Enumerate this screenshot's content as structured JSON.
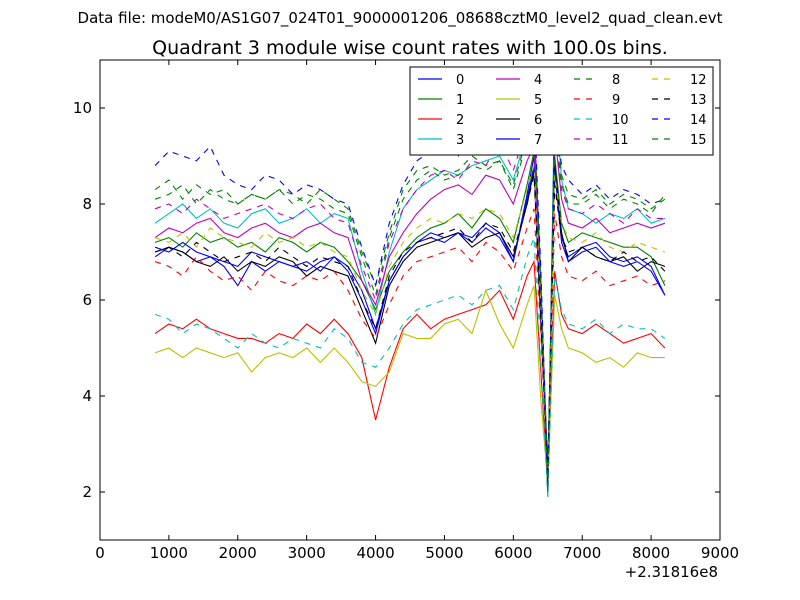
{
  "figure": {
    "suptitle": "Data file: modeM0/AS1G07_024T01_9000001206_08688cztM0_level2_quad_clean.evt"
  },
  "chart_data": {
    "type": "line",
    "title": "Quadrant 3 module wise count rates with 100.0s bins.",
    "xlabel": "",
    "ylabel": "",
    "x_offset_label": "+2.31816e8",
    "xlim": [
      0,
      9000
    ],
    "ylim": [
      1,
      11
    ],
    "xticks": [
      0,
      1000,
      2000,
      3000,
      4000,
      5000,
      6000,
      7000,
      8000,
      9000
    ],
    "yticks": [
      2,
      4,
      6,
      8,
      10
    ],
    "grid": false,
    "legend_position": "top-right",
    "legend_columns": 4,
    "x": [
      800,
      1000,
      1200,
      1400,
      1600,
      1800,
      2000,
      2200,
      2400,
      2600,
      2800,
      3000,
      3200,
      3400,
      3600,
      3800,
      4000,
      4200,
      4400,
      4600,
      4800,
      5000,
      5200,
      5400,
      5600,
      5800,
      6000,
      6200,
      6300,
      6400,
      6500,
      6600,
      6700,
      6800,
      7000,
      7200,
      7400,
      7600,
      7800,
      8000,
      8200
    ],
    "series": [
      {
        "name": "0",
        "color": "#0000ff",
        "dash": "solid",
        "values": [
          6.9,
          7.1,
          7.0,
          6.8,
          6.9,
          6.7,
          6.3,
          6.8,
          6.6,
          6.8,
          6.7,
          6.6,
          6.8,
          6.9,
          6.7,
          6.2,
          5.4,
          6.4,
          6.9,
          7.2,
          7.4,
          7.3,
          7.4,
          7.3,
          7.6,
          7.4,
          6.8,
          8.2,
          9.0,
          5.8,
          2.3,
          8.9,
          7.3,
          6.9,
          7.1,
          7.2,
          6.9,
          6.8,
          6.9,
          6.7,
          6.1
        ]
      },
      {
        "name": "1",
        "color": "#008000",
        "dash": "solid",
        "values": [
          7.2,
          7.3,
          7.1,
          7.4,
          7.2,
          7.3,
          7.1,
          7.2,
          7.0,
          7.3,
          7.2,
          7.0,
          7.2,
          7.1,
          6.8,
          6.4,
          5.8,
          6.6,
          7.0,
          7.3,
          7.5,
          7.6,
          7.8,
          7.5,
          7.9,
          7.7,
          7.2,
          8.4,
          9.1,
          6.2,
          2.5,
          9.0,
          7.6,
          7.2,
          7.4,
          7.3,
          7.2,
          7.1,
          7.1,
          6.9,
          6.3
        ]
      },
      {
        "name": "2",
        "color": "#ff0000",
        "dash": "solid",
        "values": [
          5.3,
          5.5,
          5.4,
          5.6,
          5.4,
          5.3,
          5.2,
          5.2,
          5.1,
          5.3,
          5.2,
          5.5,
          5.3,
          5.6,
          5.3,
          4.8,
          3.5,
          4.6,
          5.4,
          5.7,
          5.4,
          5.6,
          5.7,
          5.8,
          5.9,
          6.2,
          5.6,
          6.5,
          6.8,
          4.5,
          2.1,
          6.6,
          5.7,
          5.4,
          5.3,
          5.5,
          5.3,
          5.1,
          5.2,
          5.3,
          5.0
        ]
      },
      {
        "name": "3",
        "color": "#00bfbf",
        "dash": "solid",
        "values": [
          7.6,
          7.8,
          8.0,
          7.7,
          7.9,
          7.6,
          7.5,
          7.8,
          7.9,
          7.6,
          7.7,
          7.9,
          7.6,
          7.8,
          7.7,
          6.6,
          5.7,
          7.0,
          7.9,
          8.3,
          8.5,
          8.7,
          8.6,
          8.8,
          8.9,
          9.0,
          8.5,
          9.5,
          9.8,
          6.5,
          1.9,
          10.4,
          8.5,
          7.9,
          7.8,
          7.6,
          7.8,
          7.7,
          7.9,
          7.6,
          7.7
        ]
      },
      {
        "name": "4",
        "color": "#bf00bf",
        "dash": "solid",
        "values": [
          7.3,
          7.5,
          7.4,
          7.6,
          7.7,
          7.4,
          7.3,
          7.5,
          7.6,
          7.4,
          7.3,
          7.5,
          7.6,
          7.4,
          7.3,
          6.4,
          5.9,
          6.9,
          7.4,
          7.8,
          8.1,
          8.3,
          8.4,
          8.2,
          8.6,
          8.5,
          8.0,
          8.9,
          9.2,
          6.0,
          2.2,
          9.5,
          8.1,
          7.6,
          7.5,
          7.7,
          7.4,
          7.5,
          7.6,
          7.5,
          7.6
        ]
      },
      {
        "name": "5",
        "color": "#bfbf00",
        "dash": "solid",
        "values": [
          4.9,
          5.0,
          4.8,
          5.0,
          4.9,
          4.8,
          4.9,
          4.5,
          4.8,
          4.9,
          4.8,
          5.0,
          4.7,
          5.0,
          4.7,
          4.3,
          4.2,
          4.5,
          5.3,
          5.2,
          5.2,
          5.5,
          5.6,
          5.3,
          6.2,
          5.5,
          5.0,
          5.9,
          6.3,
          3.9,
          2.2,
          6.1,
          5.4,
          5.0,
          4.9,
          4.7,
          4.8,
          4.6,
          4.9,
          4.8,
          4.8
        ]
      },
      {
        "name": "6",
        "color": "#000000",
        "dash": "solid",
        "values": [
          7.0,
          7.1,
          7.0,
          6.8,
          6.7,
          6.9,
          6.6,
          6.8,
          6.7,
          6.9,
          6.8,
          6.5,
          6.7,
          6.6,
          6.5,
          5.8,
          5.1,
          6.3,
          6.8,
          7.1,
          7.2,
          7.3,
          7.4,
          7.1,
          7.3,
          7.4,
          6.9,
          8.0,
          8.7,
          5.5,
          2.4,
          8.8,
          7.4,
          6.8,
          7.1,
          6.9,
          6.8,
          6.9,
          6.6,
          6.8,
          6.7
        ]
      },
      {
        "name": "7",
        "color": "#0000ff",
        "dash": "solid",
        "values": [
          7.1,
          7.0,
          7.2,
          7.0,
          6.9,
          6.8,
          6.7,
          7.0,
          6.9,
          6.8,
          6.7,
          6.8,
          6.6,
          6.9,
          6.6,
          6.0,
          5.3,
          6.4,
          6.9,
          7.2,
          7.3,
          7.2,
          7.4,
          7.2,
          7.5,
          7.3,
          6.8,
          8.1,
          8.8,
          5.7,
          2.3,
          8.7,
          7.2,
          6.8,
          7.0,
          7.1,
          6.8,
          6.7,
          6.8,
          6.6,
          6.1
        ]
      },
      {
        "name": "8",
        "color": "#008000",
        "dash": "dashed",
        "values": [
          8.3,
          8.5,
          8.1,
          8.4,
          8.2,
          8.3,
          8.0,
          8.2,
          8.1,
          8.3,
          8.2,
          8.0,
          8.3,
          8.1,
          7.9,
          7.0,
          6.3,
          7.4,
          8.3,
          8.7,
          8.8,
          8.6,
          8.7,
          9.0,
          8.8,
          8.9,
          8.4,
          9.4,
          9.7,
          6.4,
          2.0,
          9.9,
          8.6,
          8.2,
          8.1,
          8.3,
          8.0,
          8.2,
          8.1,
          7.9,
          8.1
        ]
      },
      {
        "name": "9",
        "color": "#ff0000",
        "dash": "dashed",
        "values": [
          6.8,
          6.7,
          6.5,
          6.9,
          6.6,
          6.4,
          6.5,
          6.2,
          6.6,
          6.4,
          6.3,
          6.5,
          6.4,
          6.6,
          6.2,
          5.6,
          5.2,
          5.9,
          6.5,
          6.8,
          6.9,
          7.0,
          7.1,
          6.8,
          7.2,
          7.0,
          6.6,
          7.5,
          7.9,
          5.3,
          2.2,
          7.8,
          6.9,
          6.5,
          6.4,
          6.6,
          6.3,
          6.4,
          6.5,
          6.3,
          6.4
        ]
      },
      {
        "name": "10",
        "color": "#00bfbf",
        "dash": "dashed",
        "values": [
          5.7,
          5.6,
          5.3,
          5.5,
          5.4,
          5.2,
          5.0,
          5.3,
          5.1,
          5.0,
          5.2,
          5.1,
          5.0,
          5.4,
          5.2,
          4.7,
          4.6,
          5.0,
          5.5,
          5.8,
          5.9,
          6.0,
          6.1,
          5.9,
          6.2,
          6.3,
          5.8,
          6.9,
          7.3,
          4.6,
          1.9,
          6.5,
          5.8,
          5.5,
          5.4,
          5.6,
          5.3,
          5.5,
          5.4,
          5.4,
          5.2
        ]
      },
      {
        "name": "11",
        "color": "#bf00bf",
        "dash": "dashed",
        "values": [
          7.9,
          8.0,
          7.8,
          8.1,
          7.9,
          7.7,
          7.8,
          7.9,
          8.0,
          7.8,
          7.7,
          7.9,
          8.0,
          7.7,
          7.6,
          6.7,
          6.0,
          7.2,
          7.9,
          8.3,
          8.6,
          8.7,
          8.5,
          8.9,
          8.8,
          9.3,
          8.7,
          9.6,
          9.9,
          6.3,
          2.1,
          9.7,
          8.3,
          7.9,
          7.8,
          8.0,
          7.8,
          7.6,
          7.9,
          7.7,
          7.7
        ]
      },
      {
        "name": "12",
        "color": "#bfbf00",
        "dash": "dashed",
        "values": [
          7.3,
          7.2,
          7.4,
          7.1,
          7.5,
          7.3,
          7.2,
          7.1,
          7.4,
          7.2,
          7.3,
          7.1,
          7.2,
          7.0,
          6.9,
          6.2,
          5.7,
          6.7,
          7.2,
          7.5,
          7.7,
          7.6,
          7.8,
          7.7,
          7.9,
          7.8,
          7.3,
          8.3,
          8.8,
          5.9,
          2.2,
          8.6,
          7.6,
          7.3,
          7.2,
          7.4,
          7.1,
          7.0,
          7.2,
          7.1,
          7.0
        ]
      },
      {
        "name": "13",
        "color": "#000000",
        "dash": "dashed",
        "values": [
          7.0,
          7.1,
          6.9,
          7.2,
          7.0,
          6.8,
          6.9,
          7.0,
          6.8,
          7.1,
          6.9,
          6.7,
          6.9,
          6.8,
          6.7,
          6.0,
          5.4,
          6.5,
          7.0,
          7.2,
          7.3,
          7.4,
          7.5,
          7.2,
          7.6,
          7.5,
          7.0,
          8.0,
          8.6,
          5.6,
          2.3,
          8.4,
          7.3,
          7.0,
          7.1,
          6.9,
          6.8,
          7.0,
          6.8,
          6.9,
          6.6
        ]
      },
      {
        "name": "14",
        "color": "#0000ff",
        "dash": "dashed",
        "values": [
          8.8,
          9.1,
          9.0,
          8.9,
          9.2,
          8.6,
          8.4,
          8.3,
          8.6,
          8.5,
          8.2,
          8.4,
          8.3,
          8.1,
          8.0,
          7.1,
          6.3,
          7.6,
          8.4,
          8.9,
          9.1,
          9.2,
          9.0,
          9.4,
          9.6,
          9.7,
          9.2,
          9.9,
          10.1,
          6.6,
          2.1,
          9.9,
          8.8,
          8.5,
          8.2,
          8.4,
          8.1,
          8.3,
          8.2,
          8.0,
          8.1
        ]
      },
      {
        "name": "15",
        "color": "#008000",
        "dash": "dashed",
        "values": [
          8.1,
          8.2,
          8.4,
          8.0,
          8.3,
          8.1,
          8.0,
          8.2,
          8.1,
          8.3,
          8.0,
          8.2,
          8.1,
          7.9,
          7.8,
          6.9,
          6.1,
          7.3,
          8.1,
          8.5,
          8.7,
          8.5,
          8.6,
          8.8,
          8.7,
          8.9,
          8.3,
          9.3,
          9.6,
          6.2,
          2.0,
          9.7,
          8.4,
          8.0,
          8.0,
          8.2,
          7.9,
          8.1,
          8.0,
          7.8,
          8.2
        ]
      }
    ]
  }
}
